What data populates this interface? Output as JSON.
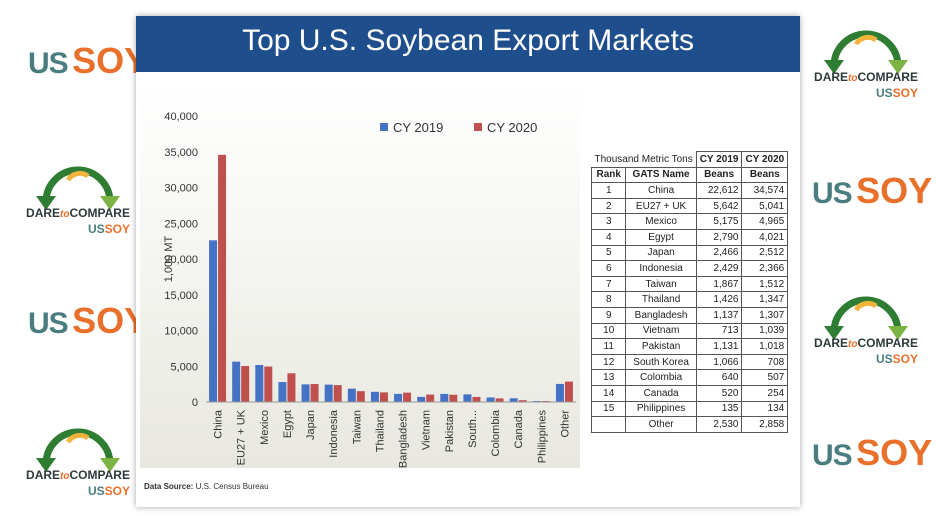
{
  "slide_title": "Top U.S. Soybean Export Markets",
  "data_source": {
    "label": "Data Source:",
    "value": "U.S. Census Bureau"
  },
  "logos": {
    "us": "US",
    "soy": "SOY",
    "dare": "DARE",
    "to": "to",
    "compare": "COMPARE"
  },
  "colors": {
    "banner": "#1f4e8c",
    "cy2019": "#4472c4",
    "cy2020": "#c0504d",
    "us": "#4a7d80",
    "soy": "#e8702a"
  },
  "chart_data": {
    "type": "bar",
    "ylabel": "1,000 MT",
    "ylim": [
      0,
      40000
    ],
    "yticks": [
      "0",
      "5,000",
      "10,000",
      "15,000",
      "20,000",
      "25,000",
      "30,000",
      "35,000",
      "40,000"
    ],
    "legend_position": "top-right",
    "categories": [
      "China",
      "EU27 + UK",
      "Mexico",
      "Egypt",
      "Japan",
      "Indonesia",
      "Taiwan",
      "Thailand",
      "Bangladesh",
      "Vietnam",
      "Pakistan",
      "South...",
      "Colombia",
      "Canada",
      "Philippines",
      "Other"
    ],
    "series": [
      {
        "name": "CY 2019",
        "values": [
          22612,
          5642,
          5175,
          2790,
          2466,
          2429,
          1867,
          1426,
          1137,
          713,
          1131,
          1066,
          640,
          520,
          135,
          2530
        ]
      },
      {
        "name": "CY 2020",
        "values": [
          34574,
          5041,
          4965,
          4021,
          2512,
          2366,
          1512,
          1347,
          1307,
          1039,
          1018,
          708,
          507,
          254,
          134,
          2858
        ]
      }
    ]
  },
  "table": {
    "caption": "Thousand Metric Tons",
    "col_years": [
      "CY 2019",
      "CY 2020"
    ],
    "headers": [
      "Rank",
      "GATS Name",
      "Beans",
      "Beans"
    ],
    "rows": [
      [
        "1",
        "China",
        "22,612",
        "34,574"
      ],
      [
        "2",
        "EU27 + UK",
        "5,642",
        "5,041"
      ],
      [
        "3",
        "Mexico",
        "5,175",
        "4,965"
      ],
      [
        "4",
        "Egypt",
        "2,790",
        "4,021"
      ],
      [
        "5",
        "Japan",
        "2,466",
        "2,512"
      ],
      [
        "6",
        "Indonesia",
        "2,429",
        "2,366"
      ],
      [
        "7",
        "Taiwan",
        "1,867",
        "1,512"
      ],
      [
        "8",
        "Thailand",
        "1,426",
        "1,347"
      ],
      [
        "9",
        "Bangladesh",
        "1,137",
        "1,307"
      ],
      [
        "10",
        "Vietnam",
        "713",
        "1,039"
      ],
      [
        "11",
        "Pakistan",
        "1,131",
        "1,018"
      ],
      [
        "12",
        "South Korea",
        "1,066",
        "708"
      ],
      [
        "13",
        "Colombia",
        "640",
        "507"
      ],
      [
        "14",
        "Canada",
        "520",
        "254"
      ],
      [
        "15",
        "Philippines",
        "135",
        "134"
      ],
      [
        "",
        "Other",
        "2,530",
        "2,858"
      ]
    ]
  }
}
